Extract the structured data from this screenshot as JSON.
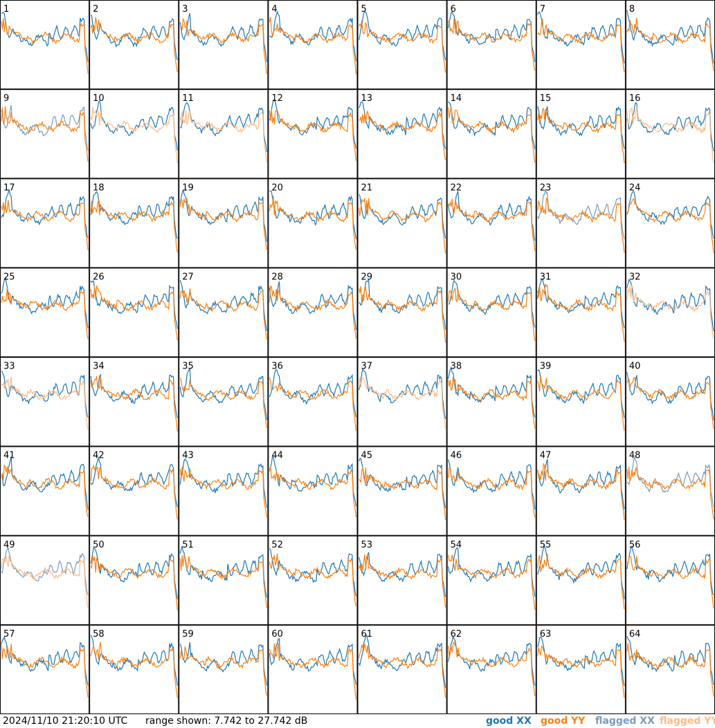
{
  "chart_data": {
    "type": "line",
    "title": "",
    "xlabel": "",
    "ylabel": "",
    "ylim": [
      7.742,
      27.742
    ],
    "panels": [
      "1",
      "2",
      "3",
      "4",
      "5",
      "6",
      "7",
      "8",
      "9",
      "10",
      "11",
      "12",
      "13",
      "14",
      "15",
      "16",
      "17",
      "18",
      "19",
      "20",
      "21",
      "22",
      "23",
      "24",
      "25",
      "26",
      "27",
      "28",
      "29",
      "30",
      "31",
      "32",
      "33",
      "34",
      "35",
      "36",
      "37",
      "38",
      "39",
      "40",
      "41",
      "42",
      "43",
      "44",
      "45",
      "46",
      "47",
      "48",
      "49",
      "50",
      "51",
      "52",
      "53",
      "54",
      "55",
      "56",
      "57",
      "58",
      "59",
      "60",
      "61",
      "62",
      "63",
      "64"
    ],
    "series": [
      {
        "name": "good XX",
        "color": "#1f77b4"
      },
      {
        "name": "good YY",
        "color": "#ff7f0e"
      },
      {
        "name": "flagged XX",
        "color": "#7a9bbf"
      },
      {
        "name": "flagged YY",
        "color": "#ffbb85"
      }
    ],
    "flagged_panels": {
      "xx": [
        9,
        23,
        48,
        49
      ],
      "yy": [
        10,
        11,
        16,
        32,
        33,
        37,
        49
      ]
    },
    "legend_position": "bottom-right"
  },
  "footer": {
    "timestamp": "2024/11/10 21:20:10 UTC",
    "range": "range shown: 7.742 to 27.742 dB"
  },
  "legend": {
    "good_xx": "good XX",
    "good_yy": "good YY",
    "flagged_xx": "flagged XX",
    "flagged_yy": "flagged YY"
  },
  "colors": {
    "good_xx": "#1f77b4",
    "good_yy": "#ff7f0e",
    "flagged_xx": "#7a9bbf",
    "flagged_yy": "#ffbb85"
  }
}
